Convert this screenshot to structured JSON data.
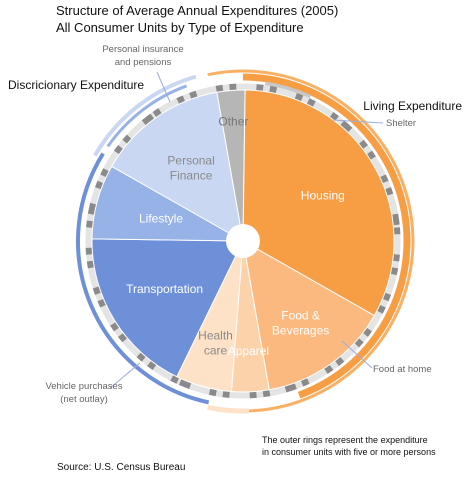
{
  "chart_data": {
    "type": "pie",
    "title": "Structure of Average Annual Expenditures (2005)",
    "subtitle": "All Consumer Units by Type of Expenditure",
    "groups": [
      {
        "name": "Living Expenditure",
        "color": "#f59a3c"
      },
      {
        "name": "Discricionary Expenditure",
        "color": "#6f91d8"
      }
    ],
    "segments": [
      {
        "label": "Other",
        "value": 3,
        "color": "#b6b6b6",
        "text_color": "#777777"
      },
      {
        "label": "Housing",
        "value": 33,
        "color": "#f79e45",
        "text_color": "#ffffff"
      },
      {
        "label": "Food & Beverages",
        "lines": [
          "Food &",
          "Beverages"
        ],
        "value": 14,
        "color": "#fcb97f",
        "text_color": "#ffffff"
      },
      {
        "label": "Apparel",
        "value": 4,
        "color": "#fcd2ab",
        "text_color": "#ffffff"
      },
      {
        "label": "Health care",
        "lines": [
          "Health",
          "care"
        ],
        "value": 6,
        "color": "#fde2c7",
        "text_color": "#8a8a8a"
      },
      {
        "label": "Transportation",
        "value": 18,
        "color": "#6e90d8",
        "text_color": "#ffffff"
      },
      {
        "label": "Lifestyle",
        "value": 8,
        "color": "#97b2e6",
        "text_color": "#ffffff"
      },
      {
        "label": "Personal Finance",
        "lines": [
          "Personal",
          "Finance"
        ],
        "value": 14,
        "color": "#c9d7f3",
        "text_color": "#8a8a8a"
      }
    ],
    "annotations": [
      {
        "lines": [
          "Personal insurance",
          "and pensions"
        ]
      },
      {
        "lines": [
          "Shelter"
        ]
      },
      {
        "lines": [
          "Food at home"
        ]
      },
      {
        "lines": [
          "Vehicle purchases",
          "(net outlay)"
        ]
      }
    ],
    "note_lines": [
      "The outer rings represent the expenditure",
      "in consumer units with five or more persons"
    ],
    "source": "Source: U.S. Census Bureau"
  }
}
